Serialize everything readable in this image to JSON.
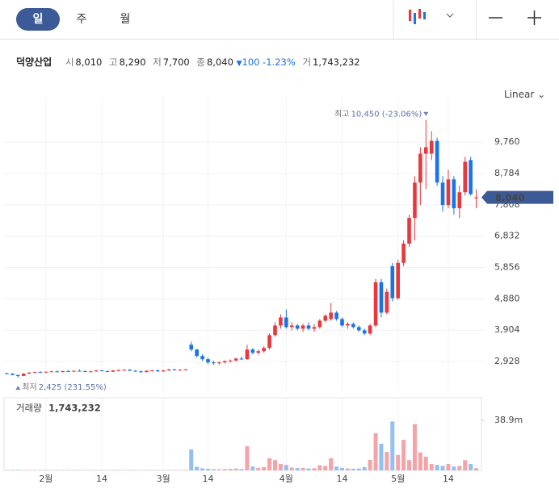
{
  "tabs": [
    "일",
    "주",
    "월"
  ],
  "info": {
    "name": "덕양산업",
    "items": [
      {
        "label": "시",
        "value": "8,010"
      },
      {
        "label": "고",
        "value": "8,290"
      },
      {
        "label": "저",
        "value": "7,700"
      },
      {
        "label": "종",
        "value": "8,040"
      }
    ],
    "change": "100",
    "change_pct": "-1.23%",
    "volume_label": "거",
    "volume": "1,743,232"
  },
  "scale_mode": "Linear",
  "chart_data": {
    "type": "candlestick",
    "categories": [
      null,
      null,
      null,
      null,
      null,
      null,
      null,
      "2월",
      null,
      null,
      null,
      null,
      null,
      null,
      null,
      null,
      null,
      "14",
      null,
      null,
      null,
      null,
      null,
      null,
      null,
      null,
      null,
      null,
      "3월",
      null,
      null,
      null,
      null,
      null,
      null,
      null,
      "14",
      null,
      null,
      null,
      null,
      null,
      null,
      null,
      null,
      null,
      null,
      null,
      null,
      null,
      "4월",
      null,
      null,
      null,
      null,
      null,
      null,
      null,
      null,
      null,
      "14",
      null,
      null,
      null,
      null,
      null,
      null,
      null,
      null,
      null,
      "5월",
      null,
      null,
      null,
      null,
      null,
      null,
      null,
      null,
      "14",
      null,
      null,
      null,
      null,
      null
    ],
    "open": [
      2560,
      2550,
      2510,
      2480,
      2550,
      2580,
      2600,
      2590,
      2610,
      2620,
      2600,
      2630,
      2620,
      2640,
      2630,
      2610,
      2620,
      2650,
      2630,
      2610,
      2650,
      2660,
      2670,
      2640,
      2620,
      2600,
      2640,
      2650,
      2620,
      2650,
      2680,
      2660,
      2670,
      3450,
      3300,
      3100,
      3000,
      2900,
      2880,
      2900,
      2940,
      2960,
      3020,
      3000,
      3300,
      3200,
      3250,
      3350,
      3750,
      4050,
      4300,
      4000,
      4050,
      3950,
      4050,
      3950,
      4000,
      4200,
      4250,
      4450,
      4250,
      4050,
      4100,
      4000,
      3900,
      3800,
      4050,
      5400,
      4450,
      5900,
      4900,
      6000,
      6600,
      7400,
      8500,
      9400,
      9400,
      9800,
      8500,
      7800,
      8600,
      7700,
      8200,
      9200,
      8010
    ],
    "high": [
      2580,
      2560,
      2520,
      2560,
      2600,
      2610,
      2630,
      2620,
      2640,
      2650,
      2640,
      2660,
      2650,
      2680,
      2650,
      2640,
      2660,
      2670,
      2650,
      2660,
      2690,
      2680,
      2690,
      2660,
      2650,
      2650,
      2670,
      2680,
      2660,
      2700,
      2700,
      2690,
      2700,
      3550,
      3320,
      3150,
      3050,
      2950,
      2920,
      2960,
      2990,
      3050,
      3080,
      3450,
      3350,
      3300,
      3400,
      3800,
      4150,
      4400,
      4550,
      4150,
      4100,
      4100,
      4150,
      4100,
      4250,
      4400,
      4750,
      4500,
      4300,
      4150,
      4150,
      4050,
      3950,
      4100,
      5500,
      5500,
      5200,
      6000,
      6100,
      6700,
      7500,
      8700,
      9600,
      10450,
      10100,
      9900,
      8700,
      8900,
      8700,
      8400,
      9300,
      9300,
      8290
    ],
    "low": [
      2530,
      2500,
      2425,
      2470,
      2540,
      2560,
      2580,
      2570,
      2600,
      2590,
      2590,
      2610,
      2600,
      2620,
      2600,
      2590,
      2610,
      2620,
      2600,
      2600,
      2630,
      2640,
      2630,
      2610,
      2580,
      2590,
      2620,
      2610,
      2600,
      2640,
      2650,
      2640,
      2650,
      3250,
      3050,
      2950,
      2850,
      2820,
      2830,
      2870,
      2900,
      2930,
      2980,
      2980,
      3150,
      3150,
      3200,
      3300,
      3700,
      3950,
      3950,
      3900,
      3900,
      3850,
      3900,
      3850,
      3950,
      4150,
      4200,
      4200,
      4000,
      3950,
      3950,
      3850,
      3750,
      3750,
      4000,
      4300,
      4400,
      4800,
      4850,
      5900,
      6500,
      6700,
      7800,
      8300,
      9200,
      8400,
      7600,
      7700,
      7500,
      7400,
      8100,
      8100,
      7700
    ],
    "close": [
      2550,
      2510,
      2480,
      2550,
      2580,
      2600,
      2590,
      2610,
      2620,
      2600,
      2630,
      2620,
      2640,
      2630,
      2610,
      2620,
      2650,
      2630,
      2610,
      2650,
      2660,
      2670,
      2640,
      2620,
      2600,
      2640,
      2650,
      2620,
      2650,
      2680,
      2660,
      2670,
      2680,
      3300,
      3100,
      3000,
      2900,
      2880,
      2900,
      2940,
      2960,
      3020,
      3000,
      3300,
      3200,
      3250,
      3350,
      3750,
      4050,
      4300,
      4000,
      4050,
      3950,
      4050,
      3950,
      4000,
      4200,
      4350,
      4450,
      4250,
      4050,
      4100,
      4000,
      3900,
      3800,
      4050,
      5400,
      4450,
      5100,
      4900,
      6000,
      6600,
      7400,
      8500,
      9400,
      9600,
      9800,
      8500,
      7800,
      8600,
      7700,
      8200,
      9150,
      8140,
      8040
    ],
    "up_color": "#e8383d",
    "down_color": "#1a73e8",
    "ylim": [
      2000,
      10920
    ],
    "yticks": [
      {
        "value": 2928,
        "label": "2,928"
      },
      {
        "value": 3904,
        "label": "3,904"
      },
      {
        "value": 4880,
        "label": "4,880"
      },
      {
        "value": 5856,
        "label": "5,856"
      },
      {
        "value": 6832,
        "label": "6,832"
      },
      {
        "value": 7808,
        "label": "7,808"
      },
      {
        "value": 8784,
        "label": "8,784"
      },
      {
        "value": 9760,
        "label": "9,760"
      }
    ],
    "grid": true,
    "last_price_label": "8,040",
    "max_annotation": {
      "label": "최고",
      "text": "10,450 (-23.06%)"
    },
    "min_annotation": {
      "label": "최저",
      "text": "2,425 (231.55%)"
    },
    "volume": {
      "title": "거래량",
      "current": "1,743,232",
      "up_color": "#f4a3a8",
      "down_color": "#93bff2",
      "values": [
        300000,
        250000,
        400000,
        350000,
        280000,
        220000,
        260000,
        300000,
        240000,
        210000,
        230000,
        270000,
        250000,
        220000,
        200000,
        240000,
        260000,
        230000,
        210000,
        250000,
        280000,
        260000,
        230000,
        220000,
        240000,
        270000,
        250000,
        230000,
        260000,
        290000,
        240000,
        250000,
        270000,
        16300000,
        2800000,
        1600000,
        1200000,
        900000,
        800000,
        1000000,
        1100000,
        1400000,
        1000000,
        18800000,
        3000000,
        2000000,
        2600000,
        9400000,
        8000000,
        5000000,
        4200000,
        2200000,
        1800000,
        2000000,
        1500000,
        1700000,
        4000000,
        3500000,
        9400000,
        3000000,
        2000000,
        1500000,
        1300000,
        1400000,
        2500000,
        8200000,
        28900000,
        20700000,
        14400000,
        38000000,
        12000000,
        23800000,
        8000000,
        36000000,
        14000000,
        10600000,
        5000000,
        4300000,
        3500000,
        5000000,
        3000000,
        3500000,
        8000000,
        5000000,
        1743232
      ],
      "ylim": [
        0,
        56500000
      ],
      "yticks": [
        {
          "value": 38900000,
          "label": "38.9m"
        }
      ]
    }
  }
}
